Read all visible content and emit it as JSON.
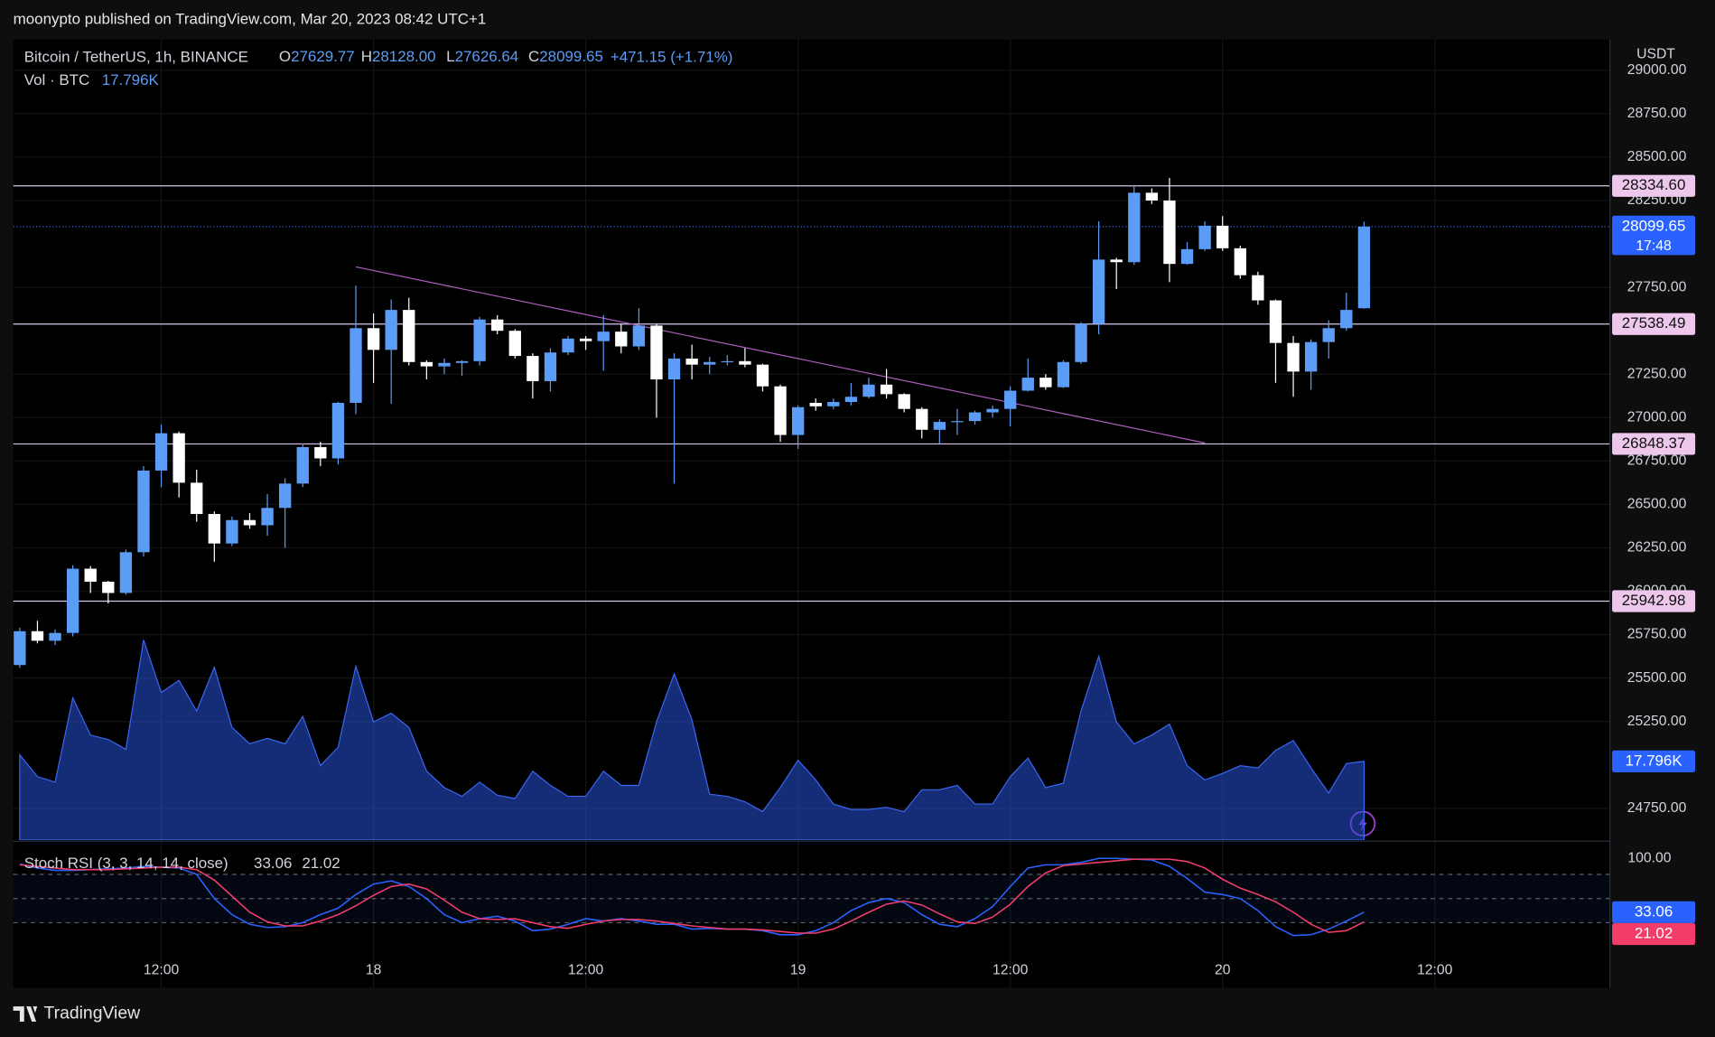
{
  "header": {
    "text": "moonypto published on TradingView.com, Mar 20, 2023 08:42 UTC+1"
  },
  "footer": {
    "brand": "TradingView"
  },
  "chart_data": {
    "type": "candlestick",
    "symbol": "Bitcoin / TetherUS, 1h, BINANCE",
    "currency": "USDT",
    "legend": {
      "o": "O",
      "h": "H",
      "l": "L",
      "c": "C",
      "high": "28128.00",
      "change": "+471.15 (+1.71%)"
    },
    "open": [
      25575,
      25770,
      25715,
      25760,
      26130,
      26055,
      25990,
      26225,
      26695,
      26910,
      26625,
      26445,
      26275,
      26410,
      26380,
      26480,
      26620,
      26830,
      26765,
      27085,
      27515,
      27390,
      27620,
      27320,
      27295,
      27315,
      27325,
      27565,
      27500,
      27355,
      27210,
      27375,
      27455,
      27440,
      27495,
      27410,
      27530,
      27220,
      27340,
      27305,
      27320,
      27325,
      27305,
      27180,
      26900,
      27085,
      27065,
      27090,
      27120,
      27190,
      27135,
      27050,
      26930,
      26975,
      26980,
      27030,
      27050,
      27155,
      27230,
      27175,
      27320,
      27540,
      27910,
      27895,
      28295,
      28250,
      27885,
      27970,
      28105,
      27975,
      27820,
      27675,
      27430,
      27265,
      27435,
      27515,
      27629.77
    ],
    "high": [
      25790,
      25830,
      25780,
      26150,
      26145,
      26060,
      26240,
      26720,
      26960,
      26920,
      26700,
      26460,
      26430,
      26450,
      26560,
      26650,
      26850,
      26860,
      27090,
      27760,
      27600,
      27680,
      27690,
      27330,
      27340,
      27330,
      27580,
      27590,
      27510,
      27370,
      27400,
      27470,
      27470,
      27590,
      27540,
      27630,
      27540,
      27370,
      27420,
      27350,
      27360,
      27400,
      27310,
      27190,
      27070,
      27110,
      27110,
      27200,
      27230,
      27280,
      27140,
      27060,
      26990,
      27050,
      27040,
      27070,
      27180,
      27340,
      27250,
      27330,
      27550,
      28130,
      27920,
      28340,
      28320,
      28380,
      28010,
      28130,
      28160,
      27990,
      27840,
      27680,
      27470,
      27450,
      27560,
      27720,
      28128
    ],
    "low": [
      25560,
      25700,
      25690,
      25740,
      25990,
      25930,
      25980,
      26200,
      26600,
      26540,
      26400,
      26170,
      26260,
      26360,
      26320,
      26250,
      26600,
      26720,
      26730,
      27020,
      27200,
      27080,
      27300,
      27220,
      27250,
      27240,
      27300,
      27480,
      27340,
      27110,
      27150,
      27360,
      27390,
      27270,
      27370,
      27390,
      27000,
      26620,
      27220,
      27250,
      27300,
      27290,
      27150,
      26860,
      26820,
      27040,
      27050,
      27070,
      27110,
      27110,
      27030,
      26880,
      26850,
      26900,
      26960,
      27000,
      26950,
      27150,
      27160,
      27170,
      27310,
      27480,
      27740,
      27880,
      28230,
      27780,
      27880,
      27960,
      27960,
      27800,
      27650,
      27200,
      27120,
      27160,
      27340,
      27500,
      27626.64
    ],
    "close": [
      25770,
      25715,
      25760,
      26130,
      26055,
      25990,
      26225,
      26695,
      26910,
      26625,
      26445,
      26275,
      26410,
      26380,
      26480,
      26620,
      26830,
      26765,
      27085,
      27515,
      27390,
      27620,
      27320,
      27295,
      27315,
      27325,
      27565,
      27500,
      27355,
      27210,
      27375,
      27455,
      27440,
      27495,
      27410,
      27530,
      27220,
      27340,
      27305,
      27320,
      27325,
      27305,
      27180,
      26900,
      27060,
      27065,
      27090,
      27120,
      27190,
      27135,
      27050,
      26930,
      26975,
      26980,
      27030,
      27050,
      27155,
      27230,
      27175,
      27320,
      27540,
      27910,
      27895,
      28295,
      28250,
      27885,
      27970,
      28105,
      27975,
      27820,
      27675,
      27430,
      27265,
      27435,
      27515,
      27620,
      28099.65
    ],
    "colors": {
      "up": "#5b9cf6",
      "down": "#ffffff"
    },
    "xlim": [
      -0.37,
      89.9
    ],
    "xticks": [
      {
        "value": 8,
        "label": "12:00"
      },
      {
        "value": 20,
        "label": "18"
      },
      {
        "value": 32,
        "label": "12:00"
      },
      {
        "value": 44,
        "label": "19"
      },
      {
        "value": 56,
        "label": "12:00"
      },
      {
        "value": 68,
        "label": "20"
      },
      {
        "value": 80,
        "label": "12:00"
      }
    ],
    "ylim": [
      24567,
      29178
    ],
    "yticks": [
      {
        "value": 29000,
        "label": "29000.00"
      },
      {
        "value": 28750,
        "label": "28750.00"
      },
      {
        "value": 28500,
        "label": "28500.00"
      },
      {
        "value": 28250,
        "label": "28250.00"
      },
      {
        "value": 27750,
        "label": "27750.00"
      },
      {
        "value": 27250,
        "label": "27250.00"
      },
      {
        "value": 27000,
        "label": "27000.00"
      },
      {
        "value": 26750,
        "label": "26750.00"
      },
      {
        "value": 26500,
        "label": "26500.00"
      },
      {
        "value": 26250,
        "label": "26250.00"
      },
      {
        "value": 26000,
        "label": "26000.00"
      },
      {
        "value": 25750,
        "label": "25750.00"
      },
      {
        "value": 25500,
        "label": "25500.00"
      },
      {
        "value": 25250,
        "label": "25250.00"
      },
      {
        "value": 24750,
        "label": "24750.00"
      }
    ],
    "grid": true,
    "levels": [
      {
        "value": 28334.6,
        "label": "28334.60"
      },
      {
        "value": 27538.49,
        "label": "27538.49"
      },
      {
        "value": 26848.37,
        "label": "26848.37"
      },
      {
        "value": 25942.98,
        "label": "25942.98"
      }
    ],
    "level_color": "#d8c6ea",
    "trendline": {
      "x": [
        19,
        67
      ],
      "y": [
        27868,
        26854
      ],
      "color": "#b05ec0"
    },
    "countdown": "17:48",
    "volume": {
      "name": "Vol · BTC",
      "last_label": "17.796K",
      "color": "#2750d8",
      "values": [
        19280,
        14340,
        13100,
        32130,
        23730,
        22740,
        20520,
        45240,
        33370,
        36090,
        29170,
        39060,
        25460,
        21750,
        22990,
        21750,
        27930,
        16810,
        21010,
        39300,
        26700,
        28670,
        25460,
        15570,
        11870,
        9890,
        13100,
        10140,
        9390,
        15570,
        12360,
        9890,
        9890,
        15570,
        12360,
        12360,
        26700,
        37570,
        27190,
        10380,
        9890,
        8650,
        6430,
        11870,
        18050,
        13600,
        8160,
        6920,
        6920,
        7420,
        6430,
        11370,
        11370,
        12360,
        8160,
        8160,
        14340,
        18540,
        11870,
        12850,
        29170,
        41530,
        26700,
        21750,
        23730,
        26200,
        16810,
        13600,
        15080,
        16810,
        16310,
        20270,
        22500,
        16310,
        10630,
        17300,
        17796
      ]
    },
    "stoch": {
      "name": "Stoch RSI (3, 3, 14, 14, close)",
      "k_color": "#2962ff",
      "d_color": "#f23d6b",
      "ylim": [
        -61,
        120
      ],
      "yticks": [
        {
          "value": 100,
          "label": "100.00"
        }
      ],
      "bands": [
        80,
        50,
        20
      ],
      "k": [
        93,
        88,
        85,
        85,
        86,
        87,
        88,
        90,
        89,
        88,
        80,
        50,
        30,
        18,
        14,
        15,
        20,
        30,
        38,
        55,
        68,
        72,
        65,
        50,
        30,
        20,
        25,
        28,
        22,
        10,
        12,
        18,
        25,
        22,
        25,
        22,
        18,
        18,
        12,
        13,
        12,
        12,
        10,
        5,
        5,
        10,
        20,
        35,
        45,
        50,
        45,
        30,
        18,
        15,
        25,
        40,
        65,
        88,
        92,
        92,
        95,
        100,
        100,
        99,
        98,
        90,
        75,
        58,
        55,
        50,
        35,
        15,
        4,
        5,
        12,
        22,
        33.06
      ],
      "d": [
        92,
        90,
        88,
        86,
        86,
        86,
        87,
        88,
        89,
        89,
        86,
        73,
        53,
        33,
        21,
        16,
        16,
        22,
        30,
        41,
        54,
        65,
        68,
        62,
        48,
        33,
        25,
        24,
        25,
        20,
        15,
        13,
        18,
        22,
        24,
        24,
        22,
        19,
        16,
        14,
        12,
        12,
        11,
        9,
        7,
        7,
        12,
        22,
        33,
        43,
        47,
        42,
        31,
        21,
        19,
        27,
        43,
        65,
        82,
        91,
        93,
        95,
        97,
        99,
        99,
        99,
        96,
        88,
        74,
        63,
        55,
        46,
        33,
        18,
        8,
        10,
        21.02
      ]
    }
  }
}
